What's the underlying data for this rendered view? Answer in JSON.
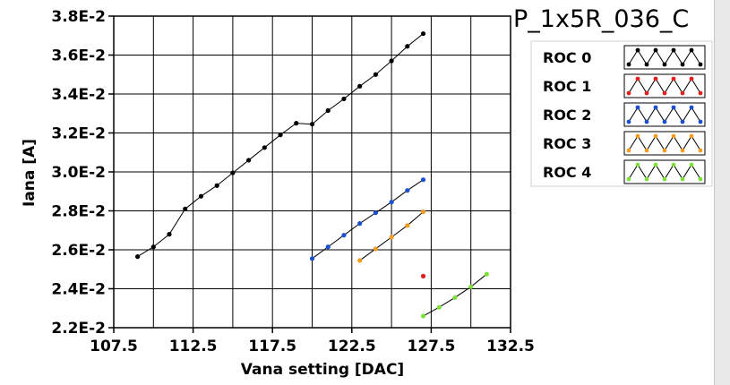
{
  "chart_data": {
    "type": "line",
    "title": "P_1x5R_036_C",
    "xlabel": "Vana setting [DAC]",
    "ylabel": "Iana [A]",
    "xlim": [
      107.5,
      132.5
    ],
    "ylim": [
      0.022,
      0.038
    ],
    "x_ticks": [
      "107.5",
      "112.5",
      "117.5",
      "122.5",
      "127.5",
      "132.5"
    ],
    "y_ticks": [
      "2.2E-2",
      "2.4E-2",
      "2.6E-2",
      "2.8E-2",
      "3.0E-2",
      "3.2E-2",
      "3.4E-2",
      "3.6E-2",
      "3.8E-2"
    ],
    "x_tick_values": [
      107.5,
      112.5,
      117.5,
      122.5,
      127.5,
      132.5
    ],
    "y_tick_values": [
      0.022,
      0.024,
      0.026,
      0.028,
      0.03,
      0.032,
      0.034,
      0.036,
      0.038
    ],
    "grid": true,
    "legend_placement": "top-right",
    "series": [
      {
        "name": "ROC 0",
        "color": "#000000",
        "x": [
          109,
          110,
          111,
          112,
          113,
          114,
          115,
          116,
          117,
          118,
          119,
          120,
          121,
          122,
          123,
          124,
          125,
          126,
          127
        ],
        "y": [
          0.02565,
          0.02615,
          0.0268,
          0.0281,
          0.02875,
          0.0293,
          0.02995,
          0.0306,
          0.03125,
          0.0319,
          0.0325,
          0.03245,
          0.03315,
          0.03375,
          0.0344,
          0.035,
          0.0357,
          0.03645,
          0.0371
        ]
      },
      {
        "name": "ROC 1",
        "color": "#e02020",
        "x": [
          127
        ],
        "y": [
          0.02465
        ]
      },
      {
        "name": "ROC 2",
        "color": "#1a4fcf",
        "x": [
          120,
          121,
          122,
          123,
          124,
          125,
          126,
          127
        ],
        "y": [
          0.02555,
          0.02615,
          0.02675,
          0.02735,
          0.0279,
          0.02845,
          0.02905,
          0.0296
        ]
      },
      {
        "name": "ROC 3",
        "color": "#f39c1f",
        "x": [
          123,
          124,
          125,
          126,
          127
        ],
        "y": [
          0.02545,
          0.02605,
          0.02665,
          0.02725,
          0.02795
        ]
      },
      {
        "name": "ROC 4",
        "color": "#7ee03a",
        "x": [
          127,
          128,
          129,
          130,
          131
        ],
        "y": [
          0.0226,
          0.02305,
          0.02355,
          0.0241,
          0.02475
        ]
      }
    ]
  }
}
